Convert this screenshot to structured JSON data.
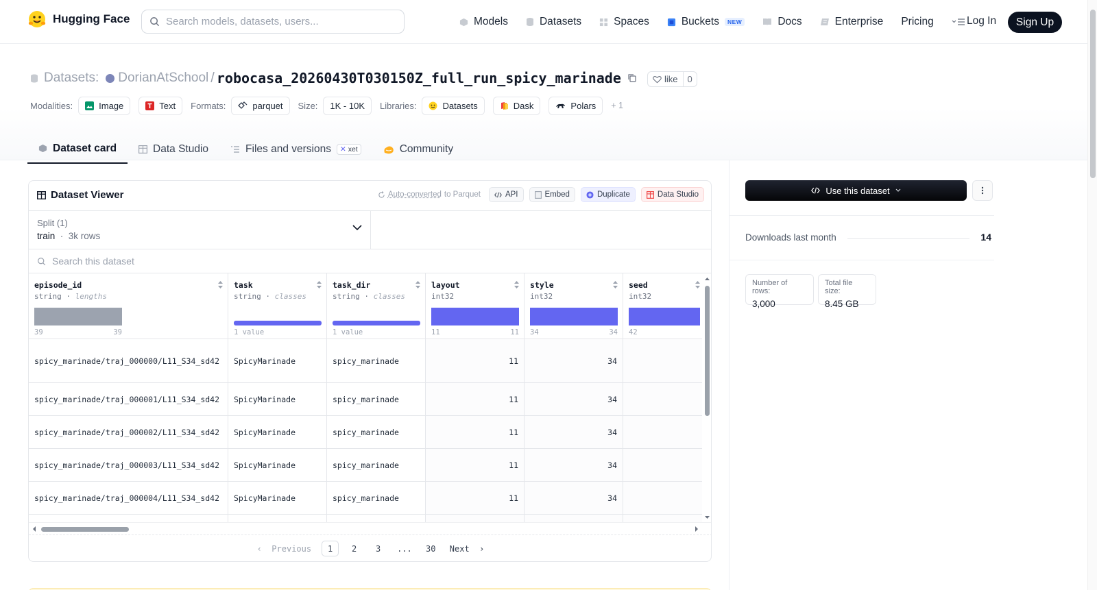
{
  "header": {
    "brand": "Hugging Face",
    "search_placeholder": "Search models, datasets, users...",
    "nav": [
      {
        "label": "Models",
        "icon": "models-icon"
      },
      {
        "label": "Datasets",
        "icon": "datasets-icon"
      },
      {
        "label": "Spaces",
        "icon": "spaces-icon"
      },
      {
        "label": "Buckets",
        "icon": "buckets-icon",
        "badge": "NEW"
      },
      {
        "label": "Docs",
        "icon": "docs-icon"
      },
      {
        "label": "Enterprise",
        "icon": "enterprise-icon"
      },
      {
        "label": "Pricing"
      }
    ],
    "login": "Log In",
    "signup": "Sign Up"
  },
  "repo": {
    "prefix": "Datasets:",
    "owner": "DorianAtSchool",
    "name": "robocasa_20260430T030150Z_full_run_spicy_marinade",
    "like_label": "like",
    "like_count": "0"
  },
  "meta": {
    "modalities_label": "Modalities:",
    "modalities": [
      "Image",
      "Text"
    ],
    "formats_label": "Formats:",
    "format": "parquet",
    "size_label": "Size:",
    "size": "1K - 10K",
    "libraries_label": "Libraries:",
    "libraries": [
      "Datasets",
      "Dask",
      "Polars"
    ],
    "more": "+ 1"
  },
  "tabs": [
    {
      "label": "Dataset card",
      "active": true
    },
    {
      "label": "Data Studio"
    },
    {
      "label": "Files and versions",
      "badge": "xet"
    },
    {
      "label": "Community"
    }
  ],
  "viewer": {
    "title": "Dataset Viewer",
    "auto_converted": "Auto-converted",
    "to_parquet": " to Parquet",
    "actions": [
      "API",
      "Embed",
      "Duplicate",
      "Data Studio"
    ],
    "split_label": "Split (1)",
    "split_value": "train",
    "split_rows": "3k rows",
    "search_placeholder": "Search this dataset",
    "columns": [
      {
        "name": "episode_id",
        "type": "string",
        "sub": "lengths",
        "hist_min": "39",
        "hist_max": "39"
      },
      {
        "name": "task",
        "type": "string",
        "sub": "classes",
        "hist_min": "1 value",
        "hist_max": ""
      },
      {
        "name": "task_dir",
        "type": "string",
        "sub": "classes",
        "hist_min": "1 value",
        "hist_max": ""
      },
      {
        "name": "layout",
        "type": "int32",
        "sub": "",
        "hist_min": "11",
        "hist_max": "11"
      },
      {
        "name": "style",
        "type": "int32",
        "sub": "",
        "hist_min": "34",
        "hist_max": "34"
      },
      {
        "name": "seed",
        "type": "int32",
        "sub": "",
        "hist_min": "42",
        "hist_max": ""
      }
    ],
    "rows": [
      [
        "spicy_marinade/traj_000000/L11_S34_sd42",
        "SpicyMarinade",
        "spicy_marinade",
        "11",
        "34",
        ""
      ],
      [
        "spicy_marinade/traj_000001/L11_S34_sd42",
        "SpicyMarinade",
        "spicy_marinade",
        "11",
        "34",
        ""
      ],
      [
        "spicy_marinade/traj_000002/L11_S34_sd42",
        "SpicyMarinade",
        "spicy_marinade",
        "11",
        "34",
        ""
      ],
      [
        "spicy_marinade/traj_000003/L11_S34_sd42",
        "SpicyMarinade",
        "spicy_marinade",
        "11",
        "34",
        ""
      ],
      [
        "spicy_marinade/traj_000004/L11_S34_sd42",
        "SpicyMarinade",
        "spicy_marinade",
        "11",
        "34",
        ""
      ]
    ],
    "pager": {
      "prev": "Previous",
      "pages": [
        "1",
        "2",
        "3",
        "...",
        "30"
      ],
      "current": "1",
      "next": "Next"
    }
  },
  "sidebar": {
    "use_button": "Use this dataset",
    "downloads_label": "Downloads last month",
    "downloads_value": "14",
    "rows_label": "Number of rows:",
    "rows_value": "3,000",
    "filesize_label": "Total file size:",
    "filesize_value": "8.45 GB"
  },
  "colors": {
    "accent_bar": "#6366f1",
    "length_bar": "#9ca3af",
    "dark": "#0b1220"
  }
}
